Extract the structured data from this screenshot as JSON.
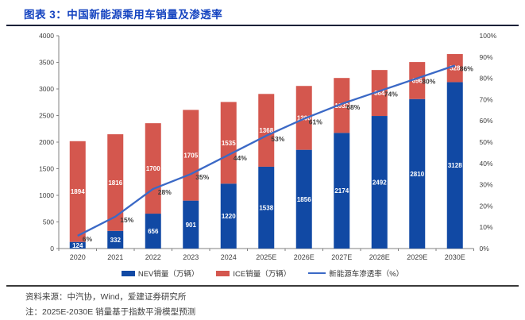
{
  "header": {
    "title": "图表 3：中国新能源乘用车销量及渗透率"
  },
  "chart_data": {
    "type": "bar",
    "subtype": "stacked-column-with-line",
    "title": "中国新能源乘用车销量及渗透率",
    "categories": [
      "2020",
      "2021",
      "2022",
      "2023",
      "2024",
      "2025E",
      "2026E",
      "2027E",
      "2028E",
      "2029E",
      "2030E"
    ],
    "series": [
      {
        "name": "NEV销量（万辆）",
        "type": "bar",
        "color": "#1149A4",
        "values": [
          124,
          332,
          656,
          901,
          1220,
          1538,
          1856,
          2174,
          2492,
          2810,
          3128
        ]
      },
      {
        "name": "ICE销量（万辆）",
        "type": "bar",
        "color": "#D4574E",
        "values": [
          1894,
          1816,
          1700,
          1705,
          1535,
          1368,
          1200,
          1032,
          864,
          696,
          528
        ]
      },
      {
        "name": "新能源车渗透率（%）",
        "type": "line",
        "axis": "right",
        "color": "#3B69C6",
        "values": [
          6,
          15,
          28,
          35,
          44,
          53,
          61,
          68,
          74,
          80,
          86
        ],
        "labels": [
          "6%",
          "15%",
          "28%",
          "35%",
          "44%",
          "53%",
          "61%",
          "68%",
          "74%",
          "80%",
          "86%"
        ]
      }
    ],
    "left_axis": {
      "min": 0,
      "max": 4000,
      "step": 500
    },
    "right_axis": {
      "min": 0,
      "max": 100,
      "step": 10,
      "suffix": "%"
    },
    "grid": false,
    "legend_position": "bottom"
  },
  "footer": {
    "source": "资料来源：中汽协，Wind，爱建证券研究所",
    "note": "注：2025E-2030E 销量基于指数平滑模型预测"
  },
  "colors": {
    "title": "#1443C0",
    "title_rule": "#1A2038",
    "footer_rule": "#3a3a3a",
    "axis": "#808080",
    "axis_text": "#404040",
    "bar_label": "#FFFFFF",
    "pct_label": "#3d3d3d"
  }
}
